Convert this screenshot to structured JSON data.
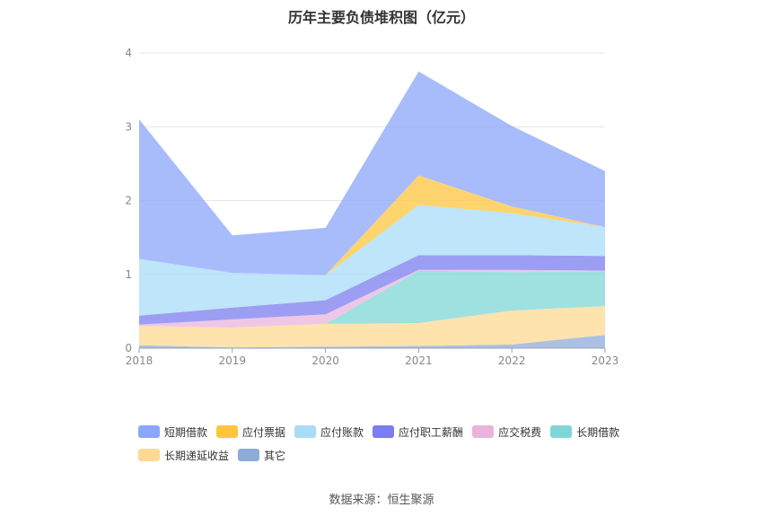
{
  "chart_data": {
    "type": "area",
    "title": "历年主要负债堆积图（亿元）",
    "source": "数据来源：恒生聚源",
    "x": [
      "2018",
      "2019",
      "2020",
      "2021",
      "2022",
      "2023"
    ],
    "ylim": [
      0,
      4
    ],
    "yticks": [
      "0",
      "1",
      "2",
      "3",
      "4"
    ],
    "grid": true,
    "stacked": true,
    "legend_position": "bottom",
    "series": [
      {
        "name": "其它",
        "color": "#8fabd8",
        "values": [
          0.04,
          0.01,
          0.02,
          0.03,
          0.05,
          0.18
        ]
      },
      {
        "name": "长期递延收益",
        "color": "#ffd992",
        "values": [
          0.26,
          0.27,
          0.31,
          0.31,
          0.46,
          0.39
        ]
      },
      {
        "name": "长期借款",
        "color": "#7fd6d6",
        "values": [
          0.0,
          0.0,
          0.0,
          0.71,
          0.52,
          0.47
        ]
      },
      {
        "name": "应交税费",
        "color": "#e9b4dc",
        "values": [
          0.02,
          0.11,
          0.13,
          0.01,
          0.03,
          0.01
        ]
      },
      {
        "name": "应付职工薪酬",
        "color": "#7b7df0",
        "values": [
          0.12,
          0.16,
          0.19,
          0.2,
          0.2,
          0.2
        ]
      },
      {
        "name": "应付账款",
        "color": "#a8dcf8",
        "values": [
          0.77,
          0.47,
          0.34,
          0.68,
          0.57,
          0.39
        ]
      },
      {
        "name": "应付票据",
        "color": "#ffc53d",
        "values": [
          0.0,
          0.0,
          0.0,
          0.4,
          0.09,
          0.0
        ]
      },
      {
        "name": "短期借款",
        "color": "#8ba6fb",
        "values": [
          1.89,
          0.51,
          0.64,
          1.41,
          1.09,
          0.76
        ]
      }
    ],
    "legend_order": [
      "短期借款",
      "应付票据",
      "应付账款",
      "应付职工薪酬",
      "应交税费",
      "长期借款",
      "长期递延收益",
      "其它"
    ]
  }
}
